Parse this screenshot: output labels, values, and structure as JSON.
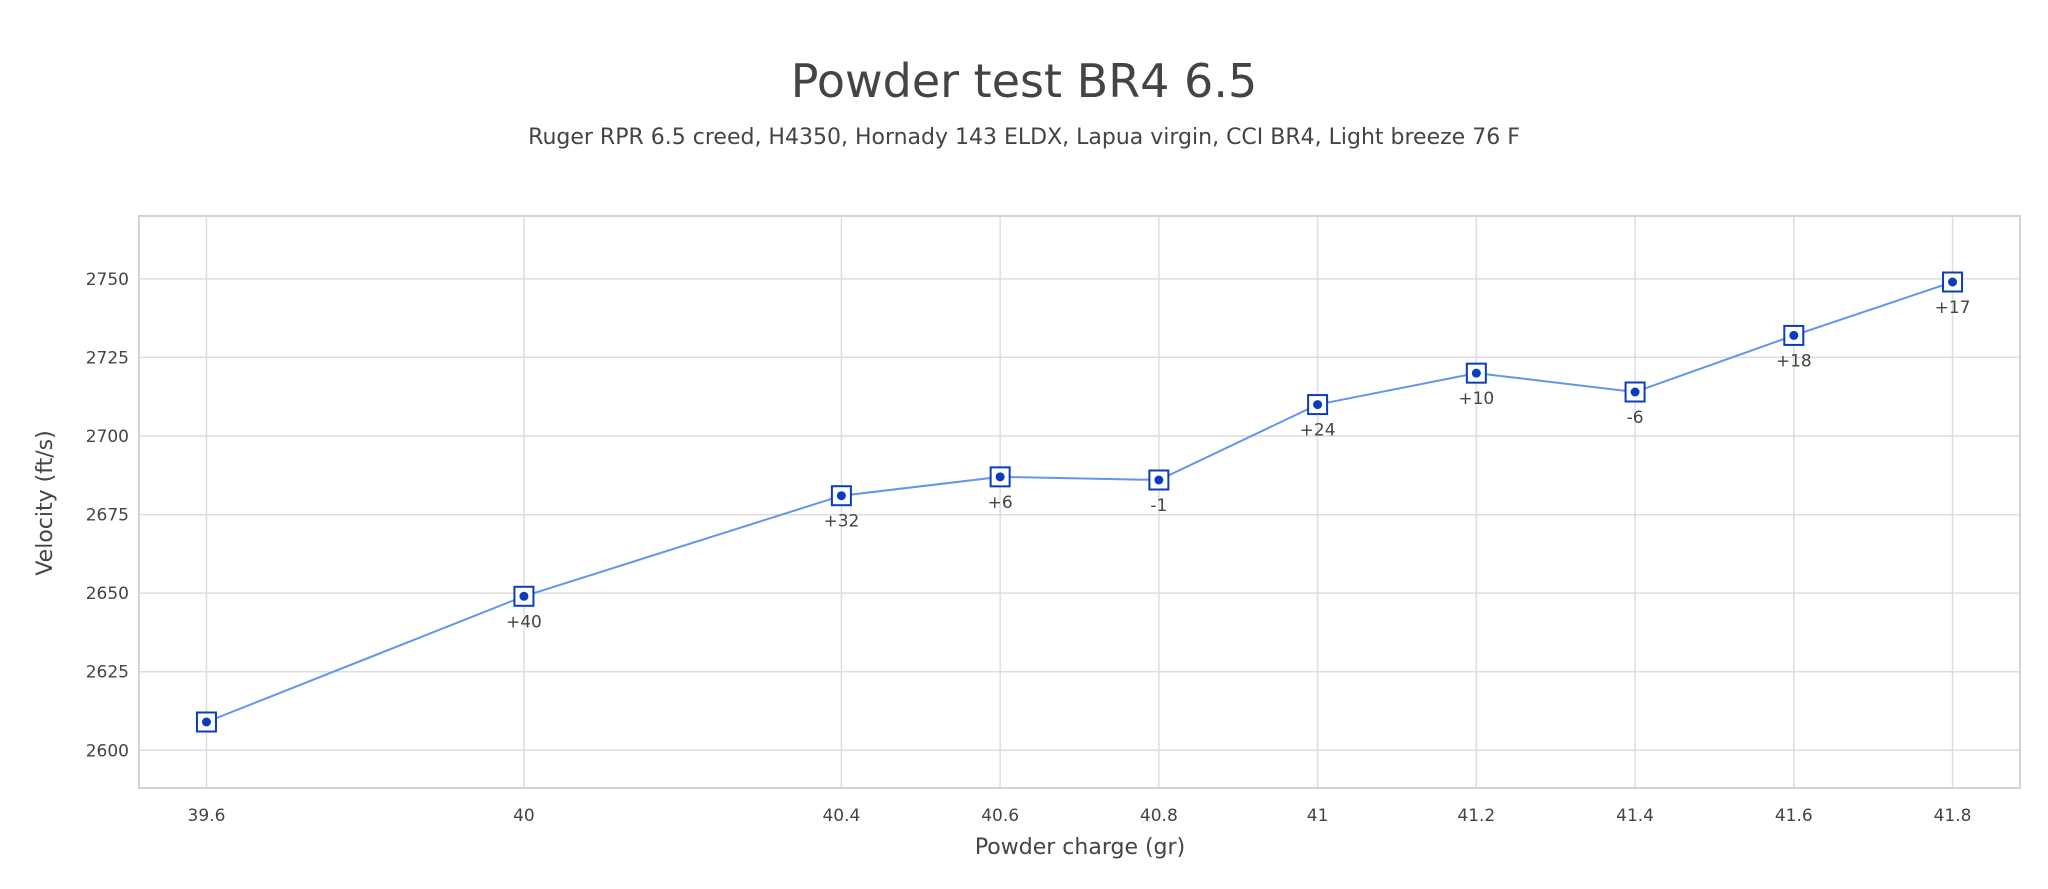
{
  "chart_data": {
    "type": "line",
    "title": "Powder test BR4 6.5",
    "subtitle": "Ruger RPR 6.5 creed, H4350, Hornady 143 ELDX, Lapua virgin, CCI BR4, Light breeze 76 F",
    "xlabel": "Powder charge (gr)",
    "ylabel": "Velocity (ft/s)",
    "xlim": [
      39.515,
      41.885
    ],
    "ylim": [
      2588,
      2770
    ],
    "x_ticks": [
      39.6,
      40,
      40.4,
      40.6,
      40.8,
      41,
      41.2,
      41.4,
      41.6,
      41.8
    ],
    "x_tick_labels": [
      "39.6",
      "40",
      "40.4",
      "40.6",
      "40.8",
      "41",
      "41.2",
      "41.4",
      "41.6",
      "41.8"
    ],
    "y_ticks": [
      2600,
      2625,
      2650,
      2675,
      2700,
      2725,
      2750
    ],
    "y_tick_labels": [
      "2600",
      "2625",
      "2650",
      "2675",
      "2700",
      "2725",
      "2750"
    ],
    "grid": true,
    "series": [
      {
        "x": [
          39.6,
          40,
          40.4,
          40.6,
          40.8,
          41,
          41.2,
          41.4,
          41.6,
          41.8
        ],
        "y": [
          2609,
          2649,
          2681,
          2687,
          2686,
          2710,
          2720,
          2714,
          2732,
          2749
        ],
        "point_labels": [
          "",
          "+40",
          "+32",
          "+6",
          "-1",
          "+24",
          "+10",
          "-6",
          "+18",
          "+17"
        ]
      }
    ],
    "colors": {
      "line": "#6495ed",
      "marker": "#0a3dbd",
      "grid": "#dddddd",
      "frame": "#d3d3d3",
      "text": "#444444"
    }
  }
}
